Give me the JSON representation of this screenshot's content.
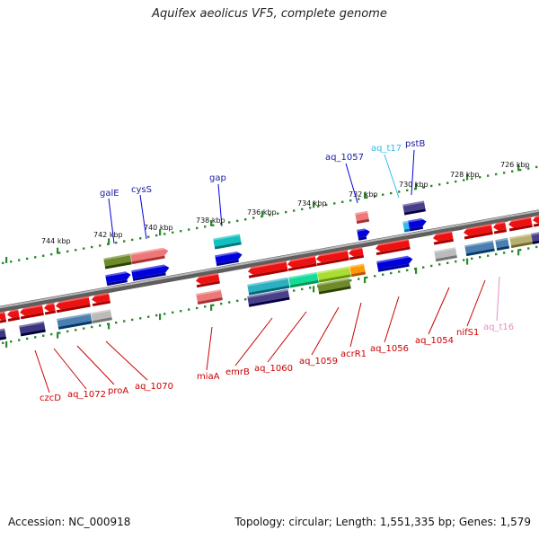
{
  "title": "Aquifex aeolicus VF5, complete genome",
  "footer": {
    "accession": "Accession: NC_000918",
    "summary": "Topology: circular; Length: 1,551,335 bp; Genes: 1,579"
  },
  "scale_ticks": [
    "744 kbp",
    "742 kbp",
    "740 kbp",
    "738 kbp",
    "736 kbp",
    "734 kbp",
    "732 kbp",
    "730 kbp",
    "728 kbp",
    "726 kbp"
  ],
  "upper_labels": [
    "galE",
    "cysS",
    "gap",
    "aq_1057",
    "aq_t17",
    "pstB"
  ],
  "lower_labels": [
    "czcD",
    "aq_1072",
    "proA",
    "aq_1070",
    "miaA",
    "emrB",
    "aq_1060",
    "aq_1059",
    "acrR1",
    "aq_1056",
    "aq_1054",
    "nifS1",
    "aq_t16"
  ],
  "colors": {
    "gene": "#ee1111",
    "protein": "#0000dd",
    "trna": "#33bbee",
    "trna_label": "#e68fc2",
    "dark_blue_label": "#1a1aa0",
    "lower_label": "#cc0000",
    "backbone": "#888888",
    "scale": "#2a8a2a"
  }
}
